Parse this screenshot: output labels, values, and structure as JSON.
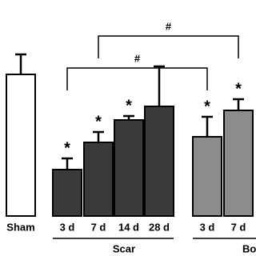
{
  "chart_data": {
    "type": "bar",
    "categories": [
      "Sham",
      "3 d",
      "7 d",
      "14 d",
      "28 d",
      "3 d",
      "7 d"
    ],
    "values": [
      177,
      58,
      92,
      120,
      137,
      99,
      132
    ],
    "errors": [
      25,
      14,
      13,
      5,
      50,
      25,
      14
    ],
    "colors": [
      "#ffffff",
      "#3a3a3a",
      "#3a3a3a",
      "#3a3a3a",
      "#3a3a3a",
      "#8c8c8c",
      "#8c8c8c"
    ],
    "markers": [
      null,
      "*",
      "*",
      "*",
      null,
      "*",
      "*"
    ],
    "group_labels": [
      "Scar",
      "Bo"
    ],
    "comparisons": [
      {
        "label": "#"
      },
      {
        "label": "#"
      }
    ],
    "ylim": [
      0,
      250
    ]
  }
}
